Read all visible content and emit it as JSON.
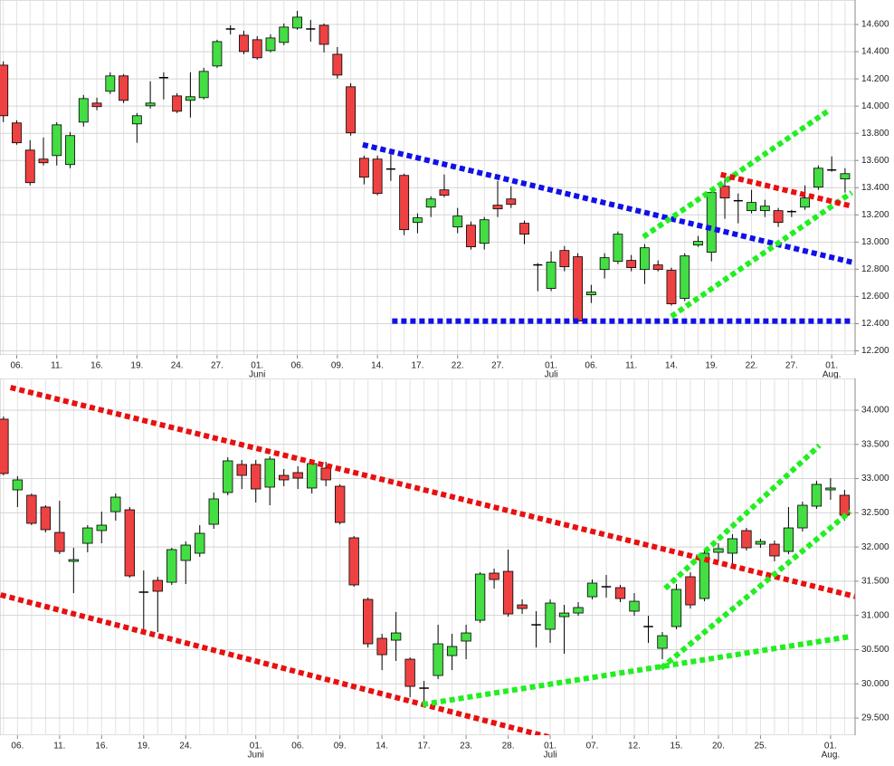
{
  "chart_data": [
    {
      "type": "candlestick",
      "up_color": "#44dd44",
      "down_color": "#ee4242",
      "doji_color": "#000000",
      "grid": true,
      "categories": [
        null,
        "06.",
        null,
        null,
        "11.",
        null,
        null,
        "16.",
        null,
        null,
        "19.",
        null,
        null,
        "24.",
        null,
        null,
        "27.",
        null,
        null,
        "01.",
        null,
        null,
        "06.",
        null,
        null,
        "09.",
        null,
        null,
        "14.",
        null,
        null,
        "17.",
        null,
        null,
        "22.",
        null,
        null,
        "27.",
        null,
        null,
        null,
        "01.",
        null,
        null,
        "06.",
        null,
        null,
        "11.",
        null,
        null,
        "14.",
        null,
        null,
        "19.",
        null,
        null,
        "22.",
        null,
        null,
        "27.",
        null,
        null,
        "01.",
        null
      ],
      "month_labels": [
        {
          "index": 19,
          "label": "Juni"
        },
        {
          "index": 41,
          "label": "Juli"
        },
        {
          "index": 62,
          "label": "Aug."
        }
      ],
      "open": [
        14301,
        13876,
        13676,
        13610,
        13636,
        13570,
        13882,
        14022,
        14109,
        14222,
        13869,
        14002,
        14209,
        14075,
        14042,
        14062,
        14295,
        14567,
        14521,
        14488,
        14408,
        14468,
        14574,
        14567,
        14594,
        14381,
        14142,
        13616,
        13610,
        13537,
        13490,
        13144,
        13257,
        13384,
        13111,
        13124,
        12991,
        13271,
        13317,
        13138,
        12832,
        12659,
        12938,
        12892,
        12612,
        12798,
        12858,
        12865,
        12798,
        12832,
        12792,
        12586,
        12978,
        12925,
        13410,
        13304,
        13231,
        13231,
        13231,
        13224,
        13257,
        13404,
        13530,
        13464
      ],
      "high": [
        14328,
        13896,
        13749,
        13769,
        13882,
        13809,
        14082,
        14062,
        14248,
        14235,
        13949,
        14182,
        14248,
        14095,
        14248,
        14281,
        14488,
        14594,
        14554,
        14514,
        14527,
        14607,
        14700,
        14634,
        14607,
        14434,
        14168,
        13636,
        13636,
        13650,
        13503,
        13211,
        13337,
        13497,
        13251,
        13151,
        13184,
        13450,
        13410,
        13158,
        12845,
        12931,
        12971,
        12918,
        12685,
        12918,
        13078,
        12905,
        12985,
        12865,
        12812,
        12918,
        13045,
        13384,
        13497,
        13357,
        13384,
        13311,
        13251,
        13237,
        13417,
        13563,
        13630,
        13543
      ],
      "low": [
        13882,
        13716,
        13417,
        13563,
        13563,
        13543,
        13849,
        13969,
        14089,
        14022,
        13730,
        13982,
        14049,
        13949,
        13916,
        14049,
        14281,
        14527,
        14381,
        14341,
        14395,
        14448,
        14561,
        14474,
        14395,
        14202,
        13783,
        13424,
        13344,
        13450,
        13051,
        13065,
        13184,
        13330,
        13065,
        12945,
        12945,
        13184,
        13251,
        12985,
        12639,
        12639,
        12785,
        12400,
        12552,
        12732,
        12838,
        12785,
        12692,
        12785,
        12533,
        12566,
        12965,
        12858,
        13171,
        13138,
        13211,
        13184,
        13111,
        13184,
        13237,
        13384,
        13517,
        13364
      ],
      "close": [
        13929,
        13730,
        13437,
        13583,
        13862,
        13783,
        14055,
        13996,
        14222,
        14042,
        13929,
        14022,
        14209,
        13962,
        14069,
        14255,
        14474,
        14567,
        14401,
        14355,
        14501,
        14581,
        14654,
        14567,
        14454,
        14228,
        13803,
        13477,
        13357,
        13537,
        13091,
        13178,
        13317,
        13344,
        13191,
        12965,
        13164,
        13244,
        13277,
        13058,
        12832,
        12852,
        12818,
        12419,
        12632,
        12885,
        13058,
        12812,
        12958,
        12798,
        12546,
        12898,
        13005,
        13364,
        13324,
        13304,
        13291,
        13264,
        13144,
        13224,
        13324,
        13543,
        13530,
        13503
      ],
      "ylim": [
        12170,
        14780
      ],
      "yticks": [
        {
          "value": 12200,
          "label": "12.200"
        },
        {
          "value": 12400,
          "label": "12.400"
        },
        {
          "value": 12600,
          "label": "12.600"
        },
        {
          "value": 12800,
          "label": "12.800"
        },
        {
          "value": 13000,
          "label": "13.000"
        },
        {
          "value": 13200,
          "label": "13.200"
        },
        {
          "value": 13400,
          "label": "13.400"
        },
        {
          "value": 13600,
          "label": "13.600"
        },
        {
          "value": 13800,
          "label": "13.800"
        },
        {
          "value": 14000,
          "label": "14.000"
        },
        {
          "value": 14200,
          "label": "14.200"
        },
        {
          "value": 14400,
          "label": "14.400"
        },
        {
          "value": 14600,
          "label": "14.600"
        }
      ],
      "trendlines": [
        {
          "color": "#1010e8",
          "x": [
            26.9,
            63.5
          ],
          "y": [
            13716,
            12852
          ]
        },
        {
          "color": "#1010e8",
          "x": [
            29.1,
            63.5
          ],
          "y": [
            12419,
            12419
          ]
        },
        {
          "color": "#22ee22",
          "x": [
            47.9,
            61.7
          ],
          "y": [
            13038,
            13962
          ]
        },
        {
          "color": "#22ee22",
          "x": [
            50,
            63.5
          ],
          "y": [
            12453,
            13364
          ]
        },
        {
          "color": "#e81010",
          "x": [
            53.7,
            63.5
          ],
          "y": [
            13497,
            13264
          ]
        }
      ]
    },
    {
      "type": "candlestick",
      "up_color": "#44dd44",
      "down_color": "#ee4242",
      "doji_color": "#000000",
      "grid": true,
      "categories": [
        null,
        "06.",
        null,
        null,
        "11.",
        null,
        null,
        "16.",
        null,
        null,
        "19.",
        null,
        null,
        "24.",
        null,
        null,
        null,
        null,
        "01.",
        null,
        null,
        "06.",
        null,
        null,
        "09.",
        null,
        null,
        "14.",
        null,
        null,
        "17.",
        null,
        null,
        "23.",
        null,
        null,
        "28.",
        null,
        null,
        "01.",
        null,
        null,
        "07.",
        null,
        null,
        "12.",
        null,
        null,
        "15.",
        null,
        null,
        "20.",
        null,
        null,
        "25.",
        null,
        null,
        null,
        null,
        "01.",
        null
      ],
      "month_labels": [
        {
          "index": 18,
          "label": "Juni"
        },
        {
          "index": 39,
          "label": "Juli"
        },
        {
          "index": 59,
          "label": "Aug."
        }
      ],
      "open": [
        33868,
        32835,
        32756,
        32584,
        32213,
        31790,
        32054,
        32240,
        32517,
        32544,
        31340,
        31512,
        31485,
        31803,
        31909,
        32332,
        32796,
        33206,
        33206,
        32875,
        33047,
        33087,
        32862,
        33153,
        32888,
        32134,
        31234,
        30665,
        30638,
        30360,
        29937,
        30122,
        30413,
        30625,
        30929,
        31618,
        31644,
        31154,
        30863,
        30797,
        30982,
        31035,
        31273,
        31419,
        31406,
        31062,
        30837,
        30519,
        30837,
        31565,
        31247,
        31922,
        31909,
        32240,
        32041,
        32041,
        31935,
        32279,
        32597,
        32835,
        32756
      ],
      "high": [
        33907,
        33034,
        32782,
        32610,
        32676,
        31988,
        32319,
        32517,
        32782,
        32584,
        31657,
        31565,
        31988,
        32081,
        32319,
        32796,
        33312,
        33272,
        33272,
        33325,
        33140,
        33180,
        33272,
        33246,
        32915,
        32160,
        31260,
        30731,
        31049,
        30387,
        30043,
        30863,
        30731,
        30863,
        31631,
        31684,
        31962,
        31234,
        31062,
        31234,
        31154,
        31194,
        31525,
        31591,
        31446,
        31326,
        30995,
        30757,
        31459,
        31631,
        31962,
        32054,
        32187,
        32279,
        32121,
        32094,
        32584,
        32663,
        32968,
        33007,
        32835
      ],
      "low": [
        33047,
        32584,
        32319,
        32213,
        31896,
        31326,
        31922,
        32054,
        32385,
        31551,
        30731,
        30757,
        31446,
        31459,
        31856,
        32266,
        32756,
        32848,
        32650,
        32610,
        32888,
        32848,
        32782,
        32888,
        32332,
        31419,
        30532,
        30201,
        30334,
        29804,
        29699,
        30069,
        30201,
        30360,
        30890,
        31392,
        30982,
        31022,
        30532,
        30598,
        30440,
        30995,
        31234,
        31260,
        31194,
        30995,
        30598,
        30360,
        30797,
        31101,
        31207,
        31790,
        31724,
        31948,
        31988,
        31790,
        31896,
        32226,
        32557,
        32690,
        32385
      ],
      "close": [
        33074,
        32981,
        32346,
        32253,
        31935,
        31816,
        32279,
        32319,
        32729,
        31578,
        31340,
        31353,
        31962,
        32028,
        32200,
        32703,
        33259,
        33047,
        32848,
        33285,
        32981,
        33007,
        33219,
        32981,
        32359,
        31446,
        30585,
        30426,
        30744,
        29963,
        29937,
        30585,
        30546,
        30744,
        31604,
        31525,
        31022,
        31101,
        30863,
        31181,
        31035,
        31115,
        31472,
        31419,
        31247,
        31207,
        30837,
        30704,
        31380,
        31154,
        31909,
        31975,
        32121,
        31988,
        32081,
        31869,
        32279,
        32610,
        32915,
        32862,
        32465
      ],
      "ylim": [
        29249,
        34463
      ],
      "yticks": [
        {
          "value": 29500,
          "label": "29.500"
        },
        {
          "value": 30000,
          "label": "30.000"
        },
        {
          "value": 30500,
          "label": "30.500"
        },
        {
          "value": 31000,
          "label": "31.000"
        },
        {
          "value": 31500,
          "label": "31.500"
        },
        {
          "value": 32000,
          "label": "32.000"
        },
        {
          "value": 32500,
          "label": "32.500"
        },
        {
          "value": 33000,
          "label": "33.000"
        },
        {
          "value": 33500,
          "label": "33.500"
        },
        {
          "value": 34000,
          "label": "34.000"
        }
      ],
      "trendlines": [
        {
          "color": "#e81010",
          "x": [
            0.5,
            62.9
          ],
          "y": [
            34331,
            31168
          ]
        },
        {
          "color": "#e81010",
          "x": [
            -0.2,
            46.6
          ],
          "y": [
            31300,
            28812
          ]
        },
        {
          "color": "#22ee22",
          "x": [
            29.9,
            60.4
          ],
          "y": [
            29699,
            30691
          ]
        },
        {
          "color": "#22ee22",
          "x": [
            46.9,
            60.4
          ],
          "y": [
            30228,
            32518
          ]
        },
        {
          "color": "#22ee22",
          "x": [
            47.2,
            58.2
          ],
          "y": [
            31393,
            33484
          ]
        }
      ]
    }
  ]
}
